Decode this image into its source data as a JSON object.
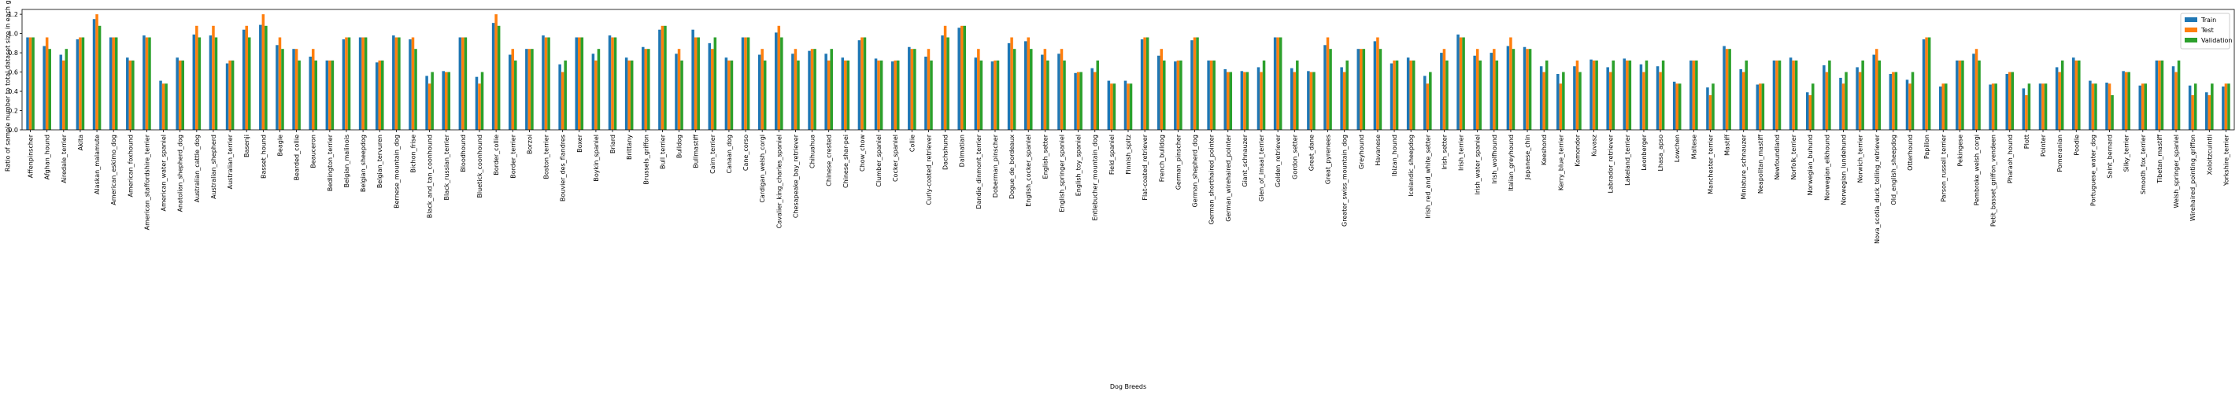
{
  "chart_data": {
    "type": "bar",
    "ylabel": "Ratio of sample number to total dataset size in each group (%)",
    "xlabel": "Dog Breeds",
    "ylim": [
      0,
      1.25
    ],
    "yticks": [
      {
        "value": 0,
        "label": "0.0"
      },
      0.2,
      0.4,
      0.6,
      0.8,
      {
        "value": 1,
        "label": "1.0"
      },
      1.2
    ],
    "legend": "upper right",
    "categories": [
      "Affenpinscher",
      "Afghan_hound",
      "Airedale_terrier",
      "Akita",
      "Alaskan_malamute",
      "American_eskimo_dog",
      "American_foxhound",
      "American_staffordshire_terrier",
      "American_water_spaniel",
      "Anatolian_shepherd_dog",
      "Australian_cattle_dog",
      "Australian_shepherd",
      "Australian_terrier",
      "Basenji",
      "Basset_hound",
      "Beagle",
      "Bearded_collie",
      "Beauceron",
      "Bedlington_terrier",
      "Belgian_malinois",
      "Belgian_sheepdog",
      "Belgian_tervuren",
      "Bernese_mountain_dog",
      "Bichon_frise",
      "Black_and_tan_coonhound",
      "Black_russian_terrier",
      "Bloodhound",
      "Bluetick_coonhound",
      "Border_collie",
      "Border_terrier",
      "Borzoi",
      "Boston_terrier",
      "Bouvier_des_flandres",
      "Boxer",
      "Boykin_spaniel",
      "Briard",
      "Brittany",
      "Brussels_griffon",
      "Bull_terrier",
      "Bulldog",
      "Bullmastiff",
      "Cairn_terrier",
      "Canaan_dog",
      "Cane_corso",
      "Cardigan_welsh_corgi",
      "Cavalier_king_charles_spaniel",
      "Chesapeake_bay_retriever",
      "Chihuahua",
      "Chinese_crested",
      "Chinese_shar-pei",
      "Chow_chow",
      "Clumber_spaniel",
      "Cocker_spaniel",
      "Collie",
      "Curly-coated_retriever",
      "Dachshund",
      "Dalmatian",
      "Dandie_dinmont_terrier",
      "Doberman_pinscher",
      "Dogue_de_bordeaux",
      "English_cocker_spaniel",
      "English_setter",
      "English_springer_spaniel",
      "English_toy_spaniel",
      "Entlebucher_mountain_dog",
      "Field_spaniel",
      "Finnish_spitz",
      "Flat-coated_retriever",
      "French_bulldog",
      "German_pinscher",
      "German_shepherd_dog",
      "German_shorthaired_pointer",
      "German_wirehaired_pointer",
      "Giant_schnauzer",
      "Glen_of_imaal_terrier",
      "Golden_retriever",
      "Gordon_setter",
      "Great_dane",
      "Great_pyrenees",
      "Greater_swiss_mountain_dog",
      "Greyhound",
      "Havanese",
      "Ibizan_hound",
      "Icelandic_sheepdog",
      "Irish_red_and_white_setter",
      "Irish_setter",
      "Irish_terrier",
      "Irish_water_spaniel",
      "Irish_wolfhound",
      "Italian_greyhound",
      "Japanese_chin",
      "Keeshond",
      "Kerry_blue_terrier",
      "Komondor",
      "Kuvasz",
      "Labrador_retriever",
      "Lakeland_terrier",
      "Leonberger",
      "Lhasa_apso",
      "Lowchen",
      "Maltese",
      "Manchester_terrier",
      "Mastiff",
      "Miniature_schnauzer",
      "Neapolitan_mastiff",
      "Newfoundland",
      "Norfolk_terrier",
      "Norwegian_buhund",
      "Norwegian_elkhound",
      "Norwegian_lundehund",
      "Norwich_terrier",
      "Nova_scotia_duck_tolling_retriever",
      "Old_english_sheepdog",
      "Otterhound",
      "Papillon",
      "Parson_russell_terrier",
      "Pekingese",
      "Pembroke_welsh_corgi",
      "Petit_basset_griffon_vendeen",
      "Pharaoh_hound",
      "Plott",
      "Pointer",
      "Pomeranian",
      "Poodle",
      "Portuguese_water_dog",
      "Saint_bernard",
      "Silky_terrier",
      "Smooth_fox_terrier",
      "Tibetan_mastiff",
      "Welsh_springer_spaniel",
      "Wirehaired_pointing_griffon",
      "Xoloitzcuintli",
      "Yorkshire_terrier"
    ],
    "series": [
      {
        "name": "Train",
        "color": "#1f77b4",
        "values": [
          0.96,
          0.87,
          0.78,
          0.94,
          1.15,
          0.96,
          0.75,
          0.98,
          0.51,
          0.75,
          0.99,
          0.98,
          0.69,
          1.04,
          1.09,
          0.88,
          0.84,
          0.76,
          0.72,
          0.94,
          0.96,
          0.7,
          0.98,
          0.94,
          0.56,
          0.61,
          0.96,
          0.55,
          1.11,
          0.78,
          0.84,
          0.98,
          0.68,
          0.96,
          0.79,
          0.98,
          0.75,
          0.86,
          1.04,
          0.79,
          1.04,
          0.9,
          0.75,
          0.96,
          0.78,
          1.01,
          0.79,
          0.82,
          0.79,
          0.75,
          0.93,
          0.74,
          0.71,
          0.86,
          0.76,
          0.98,
          1.06,
          0.75,
          0.71,
          0.9,
          0.92,
          0.78,
          0.79,
          0.59,
          0.64,
          0.51,
          0.51,
          0.94,
          0.77,
          0.71,
          0.93,
          0.72,
          0.63,
          0.61,
          0.65,
          0.96,
          0.64,
          0.61,
          0.88,
          0.65,
          0.84,
          0.92,
          0.69,
          0.75,
          0.56,
          0.8,
          0.99,
          0.77,
          0.8,
          0.87,
          0.86,
          0.66,
          0.58,
          0.66,
          0.73,
          0.65,
          0.74,
          0.68,
          0.66,
          0.5,
          0.72,
          0.44,
          0.87,
          0.63,
          0.47,
          0.72,
          0.75,
          0.39,
          0.67,
          0.54,
          0.65,
          0.78,
          0.58,
          0.52,
          0.94,
          0.45,
          0.72,
          0.79,
          0.47,
          0.58,
          0.43,
          0.48,
          0.65,
          0.75,
          0.51,
          0.49,
          0.61,
          0.46,
          0.72,
          0.66,
          0.46,
          0.39,
          0.45
        ]
      },
      {
        "name": "Test",
        "color": "#ff7f0e",
        "values": [
          0.96,
          0.96,
          0.72,
          0.96,
          1.2,
          0.96,
          0.72,
          0.96,
          0.48,
          0.72,
          1.08,
          1.08,
          0.72,
          1.08,
          1.2,
          0.96,
          0.84,
          0.84,
          0.72,
          0.96,
          0.96,
          0.72,
          0.96,
          0.96,
          0.48,
          0.6,
          0.96,
          0.48,
          1.2,
          0.84,
          0.84,
          0.96,
          0.6,
          0.96,
          0.72,
          0.96,
          0.72,
          0.84,
          1.08,
          0.84,
          0.96,
          0.84,
          0.72,
          0.96,
          0.84,
          1.08,
          0.84,
          0.84,
          0.72,
          0.72,
          0.96,
          0.72,
          0.72,
          0.84,
          0.84,
          1.08,
          1.08,
          0.84,
          0.72,
          0.96,
          0.96,
          0.84,
          0.84,
          0.6,
          0.6,
          0.48,
          0.48,
          0.96,
          0.84,
          0.72,
          0.96,
          0.72,
          0.6,
          0.6,
          0.6,
          0.96,
          0.6,
          0.6,
          0.96,
          0.6,
          0.84,
          0.96,
          0.72,
          0.72,
          0.48,
          0.84,
          0.96,
          0.84,
          0.84,
          0.96,
          0.84,
          0.6,
          0.48,
          0.72,
          0.72,
          0.6,
          0.72,
          0.6,
          0.6,
          0.48,
          0.72,
          0.36,
          0.84,
          0.6,
          0.48,
          0.72,
          0.72,
          0.36,
          0.6,
          0.48,
          0.6,
          0.84,
          0.6,
          0.48,
          0.96,
          0.48,
          0.72,
          0.84,
          0.48,
          0.6,
          0.36,
          0.48,
          0.6,
          0.72,
          0.48,
          0.48,
          0.6,
          0.48,
          0.72,
          0.6,
          0.36,
          0.36,
          0.48
        ]
      },
      {
        "name": "Validation",
        "color": "#2ca02c",
        "values": [
          0.96,
          0.84,
          0.84,
          0.96,
          1.08,
          0.96,
          0.72,
          0.96,
          0.48,
          0.72,
          0.96,
          0.96,
          0.72,
          0.96,
          1.08,
          0.84,
          0.72,
          0.72,
          0.72,
          0.96,
          0.96,
          0.72,
          0.96,
          0.84,
          0.6,
          0.6,
          0.96,
          0.6,
          1.08,
          0.72,
          0.84,
          0.96,
          0.72,
          0.96,
          0.84,
          0.96,
          0.72,
          0.84,
          1.08,
          0.72,
          0.96,
          0.96,
          0.72,
          0.96,
          0.72,
          0.96,
          0.72,
          0.84,
          0.84,
          0.72,
          0.96,
          0.72,
          0.72,
          0.84,
          0.72,
          0.96,
          1.08,
          0.72,
          0.72,
          0.84,
          0.84,
          0.72,
          0.72,
          0.6,
          0.72,
          0.48,
          0.48,
          0.96,
          0.72,
          0.72,
          0.96,
          0.72,
          0.6,
          0.6,
          0.72,
          0.96,
          0.72,
          0.6,
          0.84,
          0.72,
          0.84,
          0.84,
          0.72,
          0.72,
          0.6,
          0.72,
          0.96,
          0.72,
          0.72,
          0.84,
          0.84,
          0.72,
          0.6,
          0.6,
          0.72,
          0.72,
          0.72,
          0.72,
          0.72,
          0.48,
          0.72,
          0.48,
          0.84,
          0.72,
          0.48,
          0.72,
          0.72,
          0.48,
          0.72,
          0.6,
          0.72,
          0.72,
          0.6,
          0.6,
          0.96,
          0.48,
          0.72,
          0.72,
          0.48,
          0.6,
          0.48,
          0.48,
          0.72,
          0.72,
          0.48,
          0.36,
          0.6,
          0.48,
          0.72,
          0.72,
          0.48,
          0.48,
          0.48
        ]
      }
    ]
  }
}
